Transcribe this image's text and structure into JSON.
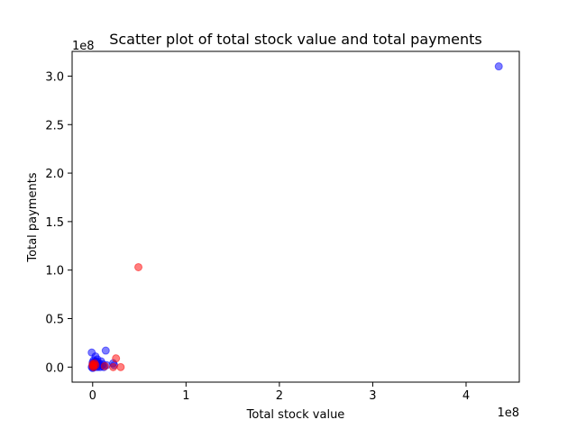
{
  "chart_data": {
    "type": "scatter",
    "title": "Scatter plot of total stock value and total payments",
    "xlabel": "Total stock value",
    "ylabel": "Total payments",
    "x_offset_label": "1e8",
    "y_offset_label": "1e8",
    "xlim": [
      -0.22,
      4.57
    ],
    "ylim": [
      -0.155,
      3.255
    ],
    "x_ticks": [
      0,
      1,
      2,
      3,
      4
    ],
    "x_tick_labels": [
      "0",
      "1",
      "2",
      "3",
      "4"
    ],
    "y_ticks": [
      0.0,
      0.5,
      1.0,
      1.5,
      2.0,
      2.5,
      3.0
    ],
    "y_tick_labels": [
      "0.0",
      "0.5",
      "1.0",
      "1.5",
      "2.0",
      "2.5",
      "3.0"
    ],
    "grid": false,
    "series": [
      {
        "color": "#0000ff",
        "opacity": 0.5,
        "points": [
          [
            4.35,
            3.1
          ],
          [
            0.14,
            0.17
          ],
          [
            -0.01,
            0.15
          ],
          [
            0.03,
            0.11
          ],
          [
            0.05,
            0.08
          ],
          [
            0.09,
            0.06
          ],
          [
            0.07,
            0.04
          ],
          [
            0.11,
            0.03
          ],
          [
            0.15,
            0.02
          ],
          [
            0.22,
            0.04
          ],
          [
            0.23,
            0.02
          ],
          [
            0.01,
            0.07
          ],
          [
            0.02,
            0.05
          ],
          [
            0.04,
            0.02
          ],
          [
            0.06,
            0.01
          ],
          [
            0.0,
            0.03
          ],
          [
            0.01,
            0.02
          ],
          [
            0.0,
            0.01
          ],
          [
            0.02,
            0.0
          ],
          [
            0.03,
            0.01
          ],
          [
            0.05,
            0.0
          ],
          [
            0.08,
            0.0
          ],
          [
            0.1,
            0.01
          ],
          [
            0.12,
            0.0
          ],
          [
            -0.01,
            0.0
          ],
          [
            0.0,
            -0.01
          ],
          [
            0.01,
            0.0
          ],
          [
            0.03,
            0.04
          ],
          [
            0.0,
            0.05
          ],
          [
            0.06,
            0.03
          ],
          [
            0.04,
            0.06
          ]
        ]
      },
      {
        "color": "#ff0000",
        "opacity": 0.5,
        "points": [
          [
            0.49,
            1.03
          ],
          [
            0.25,
            0.09
          ],
          [
            0.3,
            0.0
          ],
          [
            0.22,
            0.0
          ],
          [
            0.0,
            0.03
          ],
          [
            0.01,
            0.02
          ],
          [
            0.02,
            0.04
          ],
          [
            0.0,
            0.01
          ],
          [
            0.01,
            0.0
          ],
          [
            0.03,
            0.02
          ],
          [
            0.13,
            0.01
          ]
        ]
      }
    ]
  }
}
